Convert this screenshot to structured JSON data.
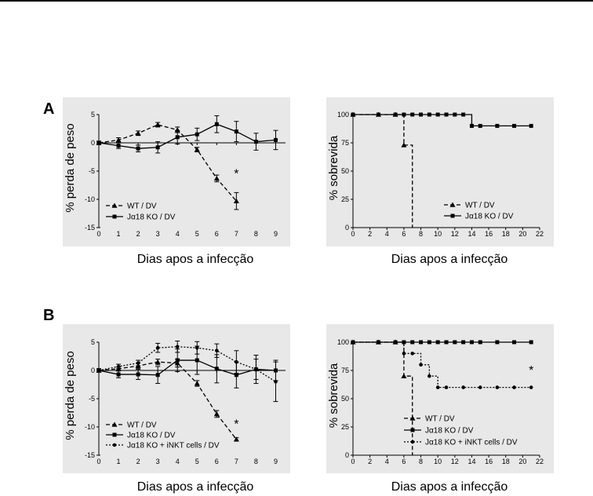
{
  "figure": {
    "panel_a_label": "A",
    "panel_b_label": "B"
  },
  "colors": {
    "plot_bg": "#e8e8e8",
    "axis": "#000000",
    "line": "#000000"
  },
  "chart_data": [
    {
      "id": "A-weight",
      "type": "line",
      "xlabel": "Dias apos a infecção",
      "ylabel": "% perda de peso",
      "xlim": [
        0,
        9.5
      ],
      "ylim": [
        -15,
        5
      ],
      "xticks": [
        0,
        1,
        2,
        3,
        4,
        5,
        6,
        7,
        8,
        9
      ],
      "yticks": [
        -15,
        -10,
        -5,
        0,
        5
      ],
      "series": [
        {
          "name": "WT / DV",
          "style": "dashed",
          "marker": "triangle",
          "x": [
            0,
            1,
            2,
            3,
            4,
            5,
            6,
            7
          ],
          "y": [
            0,
            0.5,
            1.7,
            3.2,
            2.3,
            -1.2,
            -6.3,
            -10.3
          ],
          "err": [
            0.3,
            0.4,
            0.4,
            0.4,
            0.5,
            0.4,
            0.6,
            1.5
          ]
        },
        {
          "name": "Jα18 KO / DV",
          "style": "solid",
          "marker": "square",
          "x": [
            0,
            1,
            2,
            3,
            4,
            5,
            6,
            7,
            8,
            9
          ],
          "y": [
            0,
            -0.5,
            -1.0,
            -0.8,
            1.0,
            1.5,
            3.3,
            2.0,
            0.2,
            0.5
          ],
          "err": [
            0.3,
            0.5,
            0.6,
            1.0,
            1.2,
            1.1,
            1.5,
            1.8,
            1.5,
            1.7
          ]
        }
      ],
      "annotations": [
        "*"
      ],
      "annotation_pos": [
        [
          7,
          -5.5
        ]
      ],
      "legend_loc": "lower-left"
    },
    {
      "id": "A-survival",
      "type": "line",
      "step": true,
      "xlabel": "Dias apos a infecção",
      "ylabel": "% sobrevida",
      "xlim": [
        0,
        22
      ],
      "ylim": [
        0,
        100
      ],
      "xticks": [
        0,
        2,
        4,
        6,
        8,
        10,
        12,
        14,
        16,
        18,
        20,
        22
      ],
      "yticks": [
        0,
        25,
        50,
        75,
        100
      ],
      "series": [
        {
          "name": "WT / DV",
          "style": "dashed",
          "marker": "triangle",
          "x": [
            0,
            3,
            5,
            6,
            7
          ],
          "y": [
            100,
            100,
            100,
            73,
            0
          ]
        },
        {
          "name": "Jα18 KO / DV",
          "style": "solid",
          "marker": "square",
          "x": [
            0,
            3,
            5,
            6,
            7,
            8,
            9,
            10,
            11,
            12,
            13,
            14,
            15,
            17,
            19,
            21
          ],
          "y": [
            100,
            100,
            100,
            100,
            100,
            100,
            100,
            100,
            100,
            100,
            100,
            90,
            90,
            90,
            90,
            90
          ]
        }
      ],
      "legend_loc": "lower-right"
    },
    {
      "id": "B-weight",
      "type": "line",
      "xlabel": "Dias apos a infecção",
      "ylabel": "% perda de peso",
      "xlim": [
        0,
        9.5
      ],
      "ylim": [
        -15,
        5
      ],
      "xticks": [
        0,
        1,
        2,
        3,
        4,
        5,
        6,
        7,
        8,
        9
      ],
      "yticks": [
        -15,
        -10,
        -5,
        0,
        5
      ],
      "series": [
        {
          "name": "WT / DV",
          "style": "dashed",
          "marker": "triangle",
          "x": [
            0,
            1,
            2,
            3,
            4,
            5,
            6,
            7
          ],
          "y": [
            0,
            0.3,
            0.8,
            1.5,
            1.3,
            -2.3,
            -7.7,
            -12.2
          ],
          "err": [
            0.3,
            0.3,
            0.5,
            0.5,
            0.7,
            0.5,
            0.6,
            0.3
          ]
        },
        {
          "name": "Jα18 KO / DV",
          "style": "solid",
          "marker": "square",
          "x": [
            0,
            1,
            2,
            3,
            4,
            5,
            6,
            7,
            8,
            9
          ],
          "y": [
            0,
            -0.7,
            -0.7,
            -0.8,
            1.8,
            1.8,
            0.3,
            -0.8,
            0.2,
            0.0
          ],
          "err": [
            0.3,
            0.6,
            0.9,
            1.5,
            2.0,
            2.5,
            2.5,
            2.3,
            1.8,
            1.8
          ]
        },
        {
          "name": "Jα18 KO + iNKT cells / DV",
          "style": "dotted",
          "marker": "circle",
          "x": [
            0,
            1,
            2,
            3,
            4,
            5,
            6,
            7,
            8,
            9
          ],
          "y": [
            0,
            0.7,
            1.3,
            4.0,
            4.2,
            4.0,
            3.5,
            1.5,
            0.2,
            -2.0
          ],
          "err": [
            0.3,
            0.4,
            0.5,
            0.8,
            1.0,
            1.1,
            1.2,
            2.0,
            2.5,
            3.5
          ]
        }
      ],
      "annotations": [
        "*"
      ],
      "annotation_pos": [
        [
          7,
          -9.5
        ]
      ],
      "legend_loc": "lower-left"
    },
    {
      "id": "B-survival",
      "type": "line",
      "step": true,
      "xlabel": "Dias apos a infecção",
      "ylabel": "% sobrevida",
      "xlim": [
        0,
        22
      ],
      "ylim": [
        0,
        100
      ],
      "xticks": [
        0,
        2,
        4,
        6,
        8,
        10,
        12,
        14,
        16,
        18,
        20,
        22
      ],
      "yticks": [
        0,
        25,
        50,
        75,
        100
      ],
      "series": [
        {
          "name": "WT / DV",
          "style": "dashed",
          "marker": "triangle",
          "x": [
            0,
            3,
            5,
            6,
            7
          ],
          "y": [
            100,
            100,
            100,
            70,
            0
          ]
        },
        {
          "name": "Jα18 KO / DV",
          "style": "solid",
          "marker": "square",
          "x": [
            0,
            3,
            5,
            6,
            7,
            8,
            9,
            10,
            11,
            12,
            13,
            14,
            15,
            17,
            19,
            21
          ],
          "y": [
            100,
            100,
            100,
            100,
            100,
            100,
            100,
            100,
            100,
            100,
            100,
            100,
            100,
            100,
            100,
            100
          ]
        },
        {
          "name": "Jα18 KO + iNKT cells / DV",
          "style": "dotted",
          "marker": "circle",
          "x": [
            0,
            6,
            7,
            8,
            9,
            10,
            11,
            13,
            15,
            17,
            19,
            21
          ],
          "y": [
            100,
            90,
            90,
            80,
            70,
            60,
            60,
            60,
            60,
            60,
            60,
            60
          ]
        }
      ],
      "annotations": [
        "*"
      ],
      "annotation_pos": [
        [
          21,
          75
        ]
      ],
      "legend_loc": "lower-right"
    }
  ]
}
